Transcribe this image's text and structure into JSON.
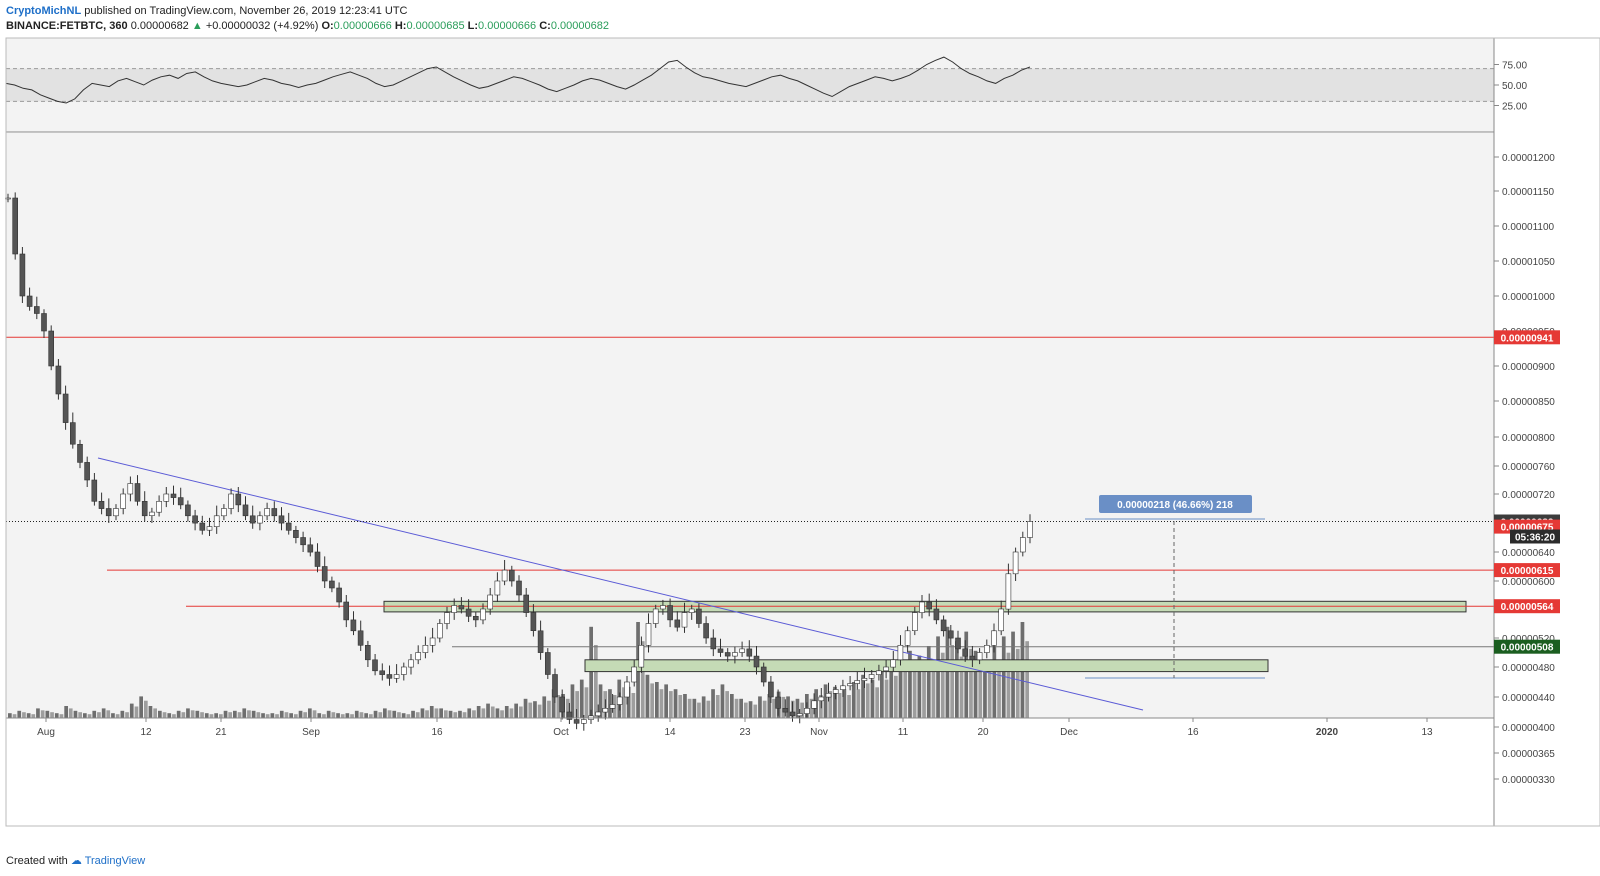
{
  "header": {
    "author": "CryptoMichNL",
    "published": "published on TradingView.com, November 26, 2019 12:23:41 UTC",
    "symbol": "BINANCE:FETBTC, 360",
    "last": "0.00000682",
    "change": "+0.00000032 (+4.92%)",
    "o_label": "O:",
    "o": "0.00000666",
    "h_label": "H:",
    "h": "0.00000685",
    "l_label": "L:",
    "l": "0.00000666",
    "c_label": "C:",
    "c": "0.00000682"
  },
  "footer": {
    "created_with": "Created with",
    "brand": "TradingView"
  },
  "colors": {
    "background": "#f3f3f3",
    "rsi_band": "#e2e2e2",
    "candle_up": "#ffffff",
    "candle_down": "#555555",
    "resistance_line": "#e53935",
    "trendline": "#5b5bd6",
    "zone_fill": "#c5dbb6",
    "measure_label": "#6a8fc6",
    "price_last": "#3c3c3c",
    "price_red": "#e53935",
    "price_green": "#1b5e20"
  },
  "chart_data": {
    "type": "candlestick",
    "rsi": {
      "ticks": [
        "75.00",
        "50.00",
        "25.00"
      ],
      "band": [
        30,
        70
      ],
      "series": [
        52,
        50,
        46,
        44,
        38,
        34,
        30,
        28,
        33,
        44,
        52,
        50,
        48,
        55,
        58,
        54,
        50,
        56,
        60,
        62,
        58,
        64,
        66,
        60,
        55,
        52,
        50,
        48,
        50,
        54,
        58,
        56,
        52,
        50,
        47,
        50,
        52,
        56,
        60,
        63,
        66,
        62,
        58,
        52,
        48,
        50,
        55,
        60,
        65,
        70,
        72,
        66,
        60,
        55,
        50,
        46,
        48,
        52,
        56,
        60,
        58,
        54,
        50,
        45,
        42,
        46,
        50,
        55,
        58,
        56,
        52,
        48,
        45,
        50,
        56,
        62,
        70,
        78,
        80,
        72,
        65,
        60,
        58,
        55,
        52,
        50,
        48,
        52,
        56,
        60,
        62,
        58,
        55,
        50,
        45,
        40,
        36,
        42,
        48,
        52,
        56,
        60,
        58,
        55,
        58,
        62,
        68,
        75,
        80,
        84,
        78,
        70,
        64,
        60,
        55,
        52,
        58,
        62,
        68,
        72
      ],
      "series_points": 120
    },
    "price": {
      "y_ticks": [
        "0.00001200",
        "0.00001150",
        "0.00001100",
        "0.00001050",
        "0.00001000",
        "0.00000950",
        "0.00000900",
        "0.00000850",
        "0.00000800",
        "0.00000760",
        "0.00000720",
        "0.00000680",
        "0.00000640",
        "0.00000600",
        "0.00000560",
        "0.00000520",
        "0.00000480",
        "0.00000440",
        "0.00000400",
        "0.00000365",
        "0.00000330"
      ],
      "y_tick_values": [
        1200,
        1150,
        1100,
        1050,
        1000,
        950,
        900,
        850,
        800,
        760,
        720,
        680,
        640,
        600,
        560,
        520,
        480,
        440,
        400,
        365,
        330
      ],
      "x_ticks": [
        "Aug",
        "12",
        "21",
        "Sep",
        "16",
        "Oct",
        "14",
        "23",
        "Nov",
        "11",
        "20",
        "Dec",
        "16",
        "2020",
        "13"
      ],
      "close_path": [
        1140,
        1060,
        1000,
        985,
        975,
        950,
        900,
        860,
        820,
        790,
        765,
        740,
        710,
        700,
        690,
        700,
        720,
        735,
        710,
        690,
        695,
        710,
        720,
        715,
        705,
        690,
        680,
        670,
        675,
        690,
        700,
        720,
        705,
        690,
        680,
        690,
        700,
        690,
        680,
        670,
        660,
        650,
        640,
        620,
        600,
        590,
        570,
        545,
        530,
        510,
        490,
        475,
        470,
        465,
        470,
        480,
        490,
        500,
        510,
        520,
        540,
        555,
        565,
        560,
        550,
        545,
        560,
        580,
        600,
        615,
        600,
        580,
        555,
        530,
        500,
        470,
        440,
        420,
        410,
        405,
        410,
        415,
        420,
        425,
        430,
        440,
        460,
        480,
        510,
        540,
        560,
        565,
        545,
        535,
        555,
        560,
        540,
        520,
        505,
        500,
        495,
        500,
        505,
        495,
        480,
        460,
        440,
        425,
        420,
        415,
        418,
        425,
        435,
        440,
        445,
        450,
        455,
        458,
        462,
        465,
        470,
        475,
        480,
        490,
        510,
        530,
        555,
        570,
        560,
        545,
        530,
        520,
        505,
        495,
        490,
        500,
        510,
        530,
        560,
        610,
        640,
        660,
        682
      ],
      "volume": [
        2,
        3,
        2,
        4,
        3,
        2,
        5,
        3,
        2,
        3,
        4,
        2,
        3,
        6,
        9,
        5,
        3,
        2,
        3,
        4,
        3,
        2,
        2,
        3,
        3,
        4,
        3,
        2,
        2,
        3,
        2,
        3,
        4,
        2,
        3,
        2,
        2,
        3,
        2,
        3,
        4,
        3,
        2,
        3,
        4,
        5,
        4,
        3,
        3,
        4,
        5,
        6,
        4,
        5,
        6,
        8,
        7,
        9,
        12,
        10,
        14,
        16,
        38,
        14,
        12,
        16,
        13,
        40,
        18,
        15,
        14,
        12,
        10,
        8,
        9,
        12,
        14,
        10,
        8,
        7,
        9,
        10,
        11,
        9,
        8,
        10,
        12,
        14,
        13,
        12,
        15,
        18,
        16,
        20,
        22,
        24,
        28,
        26,
        30,
        34,
        38,
        32,
        36,
        28,
        24,
        30,
        34,
        36,
        40
      ],
      "resistance_lines": [
        {
          "value": 941,
          "label": "0.00000941"
        },
        {
          "value": 615,
          "label": "0.00000615"
        },
        {
          "value": 564,
          "label": "0.00000564"
        }
      ],
      "extra_labels": [
        {
          "value": 682,
          "label": "0.00000682",
          "kind": "last"
        },
        {
          "value": 675,
          "label": "0.00000675",
          "kind": "red"
        },
        {
          "value": 508,
          "label": "0.00000508",
          "kind": "green"
        }
      ],
      "countdown": "05:36:20",
      "measure_label": "0.00000218 (46.66%) 218",
      "support_zones": [
        [
          556,
          571
        ],
        [
          474,
          490
        ]
      ],
      "gray_line_value": 508
    }
  }
}
